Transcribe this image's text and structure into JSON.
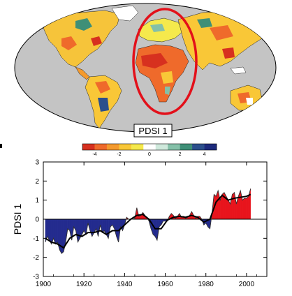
{
  "map": {
    "title": "PDSI 1",
    "colorbar": {
      "colors": [
        "#d7301f",
        "#ef6a2b",
        "#f49a2e",
        "#f9c737",
        "#f5e94c",
        "#ffffff",
        "#cfe9dc",
        "#84c0a8",
        "#3f8f77",
        "#2b4f8c",
        "#1c2a7c"
      ],
      "tick_labels": [
        "-4",
        "-2",
        "0",
        "2",
        "4"
      ]
    },
    "highlight_color": "#e3101a"
  },
  "chart_data": {
    "type": "area",
    "title": "",
    "xlabel": "",
    "ylabel": "PDSI 1",
    "xlim": [
      1900,
      2010
    ],
    "ylim": [
      -3,
      3
    ],
    "x_ticks": [
      "1900",
      "1920",
      "1940",
      "1960",
      "1980",
      "2000"
    ],
    "y_ticks": [
      "-3",
      "-2",
      "-1",
      "0",
      "1",
      "2",
      "3"
    ],
    "positive_color": "#e8141c",
    "negative_color": "#232b8e",
    "series": [
      {
        "x": [
          1901,
          1902,
          1903,
          1904,
          1905,
          1906,
          1907,
          1908,
          1909,
          1910,
          1911,
          1912,
          1913,
          1914,
          1915,
          1916,
          1917,
          1918,
          1919,
          1920,
          1921,
          1922,
          1923,
          1924,
          1925,
          1926,
          1927,
          1928,
          1929,
          1930,
          1931,
          1932,
          1933,
          1934,
          1935,
          1936,
          1937,
          1938,
          1939,
          1940,
          1941,
          1942,
          1943,
          1944,
          1945,
          1946,
          1947,
          1948,
          1949,
          1950,
          1951,
          1952,
          1953,
          1954,
          1955,
          1956,
          1957,
          1958,
          1959,
          1960,
          1961,
          1962,
          1963,
          1964,
          1965,
          1966,
          1967,
          1968,
          1969,
          1970,
          1971,
          1972,
          1973,
          1974,
          1975,
          1976,
          1977,
          1978,
          1979,
          1980,
          1981,
          1982,
          1983,
          1984,
          1985,
          1986,
          1987,
          1988,
          1989,
          1990,
          1991,
          1992,
          1993,
          1994,
          1995,
          1996,
          1997,
          1998,
          1999,
          2000,
          2001,
          2002
        ],
        "values": [
          -1.2,
          -0.9,
          -1.1,
          -1.3,
          -1.0,
          -1.3,
          -1.2,
          -1.6,
          -1.8,
          -1.7,
          -1.2,
          -0.5,
          -0.6,
          -1.1,
          -0.4,
          -0.6,
          -1.2,
          -1.0,
          -0.8,
          -0.6,
          -0.8,
          -0.2,
          -0.6,
          -0.9,
          -0.7,
          -0.5,
          -0.9,
          -0.3,
          -0.7,
          -0.6,
          -0.8,
          -1.0,
          -0.4,
          -0.3,
          -0.5,
          -0.9,
          -1.2,
          -0.4,
          -0.6,
          -0.3,
          0.1,
          0.0,
          0.0,
          0.0,
          0.05,
          0.6,
          0.15,
          0.2,
          0.35,
          0.2,
          0.1,
          -0.1,
          -0.5,
          -0.8,
          -0.9,
          -1.1,
          -0.4,
          -0.3,
          -0.1,
          -0.1,
          -0.1,
          0.15,
          0.3,
          0.2,
          0.05,
          0.15,
          0.3,
          0.1,
          0.15,
          0.05,
          0.1,
          0.2,
          0.4,
          0.2,
          0.05,
          0.15,
          0.15,
          0.0,
          -0.3,
          -0.2,
          -0.4,
          -0.5,
          0.3,
          1.3,
          1.2,
          1.5,
          1.0,
          1.3,
          1.4,
          1.2,
          1.0,
          0.8,
          1.3,
          1.4,
          0.8,
          1.2,
          1.5,
          1.0,
          1.1,
          1.1,
          1.2,
          1.6
        ]
      },
      {
        "x": [
          1901,
          1904,
          1907,
          1910,
          1913,
          1916,
          1919,
          1922,
          1925,
          1928,
          1931,
          1934,
          1937,
          1940,
          1943,
          1946,
          1949,
          1952,
          1955,
          1958,
          1961,
          1964,
          1967,
          1970,
          1973,
          1976,
          1979,
          1982,
          1985,
          1988,
          1991,
          1994,
          1997,
          2000,
          2002
        ],
        "values": [
          -1.0,
          -1.2,
          -1.3,
          -1.5,
          -1.0,
          -0.8,
          -0.9,
          -0.7,
          -0.7,
          -0.6,
          -0.8,
          -0.6,
          -0.6,
          -0.3,
          0.0,
          0.2,
          0.25,
          0.0,
          -0.5,
          -0.5,
          -0.05,
          0.1,
          0.15,
          0.1,
          0.2,
          0.1,
          -0.15,
          0.0,
          0.9,
          1.25,
          1.0,
          1.1,
          1.15,
          1.2,
          1.3
        ]
      }
    ]
  }
}
